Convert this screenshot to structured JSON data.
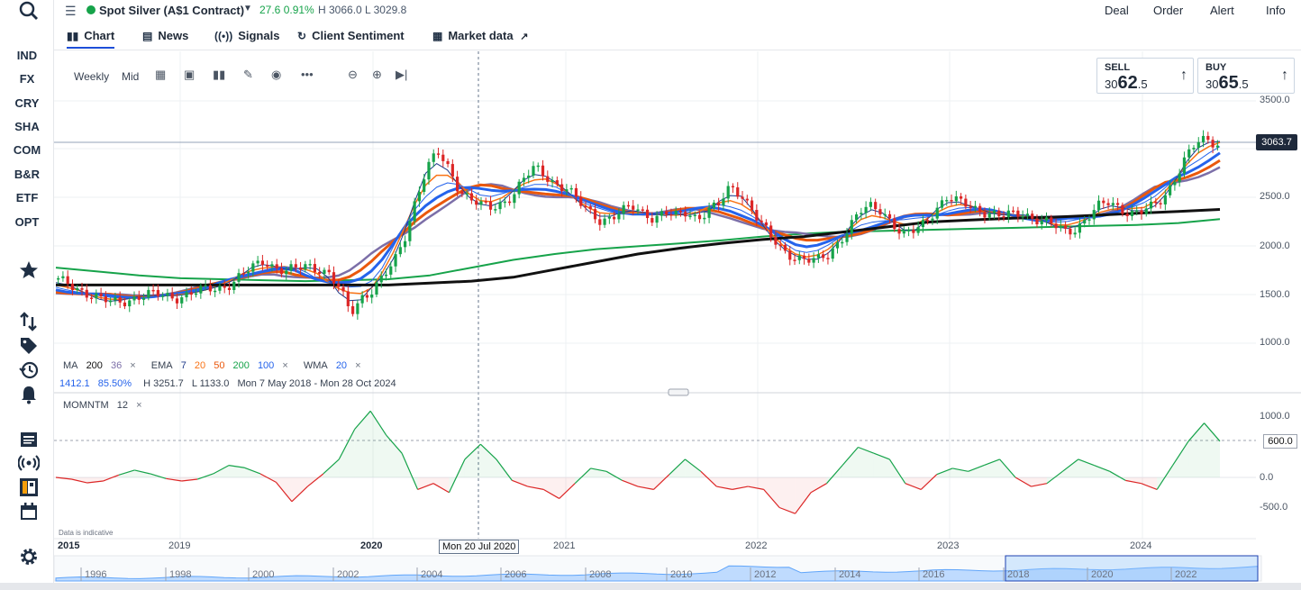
{
  "header": {
    "title": "Spot Silver (A$1 Contract)",
    "change": "27.6  0.91%",
    "high_low": "H 3066.0  L 3029.8",
    "nav": [
      "Deal",
      "Order",
      "Alert",
      "Info"
    ]
  },
  "tabs": [
    {
      "label": "Chart",
      "icon": "chart-icon"
    },
    {
      "label": "News",
      "icon": "news-icon"
    },
    {
      "label": "Signals",
      "icon": "signals-icon"
    },
    {
      "label": "Client Sentiment",
      "icon": "sentiment-icon"
    },
    {
      "label": "Market data",
      "icon": "market-data-icon"
    }
  ],
  "sidebar": {
    "items": [
      "IND",
      "FX",
      "CRY",
      "SHA",
      "COM",
      "B&R",
      "ETF",
      "OPT"
    ]
  },
  "toolbar": {
    "interval": "Weekly",
    "price_type": "Mid"
  },
  "quote": {
    "sell_label": "SELL",
    "sell_small": "30",
    "sell_big": "62",
    "sell_frac": ".5",
    "buy_label": "BUY",
    "buy_small": "30",
    "buy_big": "65",
    "buy_frac": ".5",
    "last": "3063.7"
  },
  "main_axis": {
    "y_ticks": [
      "3500.0",
      "2500.0",
      "2000.0",
      "1500.0",
      "1000.0"
    ]
  },
  "indicators": {
    "ma": {
      "name": "MA",
      "p1": "200",
      "p2": "36",
      "x": "×"
    },
    "ema": {
      "name": "EMA",
      "periods": [
        "7",
        "20",
        "50",
        "200",
        "100"
      ],
      "x": "×"
    },
    "wma": {
      "name": "WMA",
      "period": "20",
      "x": "×"
    },
    "stats": {
      "v1": "1412.1",
      "v2": "85.50%",
      "high": "H 3251.7",
      "low": "L 1133.0",
      "range": "Mon 7 May 2018 - Mon 28 Oct 2024"
    }
  },
  "momentum": {
    "label": "MOMNTM",
    "period": "12",
    "x": "×",
    "y_ticks": [
      "1000.0",
      "0.0",
      "-500.0"
    ],
    "tag_value": "600.0"
  },
  "x_axis": {
    "labels": [
      "2015",
      "2019",
      "2020",
      "2021",
      "2022",
      "2023",
      "2024"
    ],
    "crosshair_label": "Mon 20 Jul 2020",
    "disclaimer": "Data is indicative"
  },
  "navigator": {
    "years": [
      "1996",
      "1998",
      "2000",
      "2002",
      "2004",
      "2006",
      "2008",
      "2010",
      "2012",
      "2014",
      "2016",
      "2018",
      "2020",
      "2022"
    ]
  },
  "chart_data": {
    "type": "line",
    "title": "",
    "price_series_weekly_close": [
      1640,
      1610,
      1560,
      1500,
      1440,
      1420,
      1440,
      1470,
      1490,
      1500,
      1490,
      1480,
      1500,
      1530,
      1560,
      1580,
      1620,
      1700,
      1780,
      1860,
      1790,
      1740,
      1760,
      1800,
      1780,
      1720,
      1540,
      1300,
      1480,
      1560,
      1680,
      1820,
      2100,
      2500,
      2800,
      2960,
      2800,
      2600,
      2500,
      2420,
      2380,
      2450,
      2550,
      2700,
      2800,
      2720,
      2650,
      2600,
      2450,
      2350,
      2280,
      2300,
      2350,
      2400,
      2350,
      2300,
      2350,
      2300,
      2350,
      2300,
      2380,
      2420,
      2600,
      2550,
      2400,
      2200,
      2050,
      1950,
      1900,
      1860,
      1840,
      1900,
      2050,
      2200,
      2350,
      2400,
      2380,
      2250,
      2100,
      2150,
      2250,
      2400,
      2500,
      2450,
      2420,
      2380,
      2350,
      2300,
      2320,
      2350,
      2300,
      2250,
      2200,
      2150,
      2200,
      2300,
      2400,
      2450,
      2400,
      2350,
      2350,
      2400,
      2500,
      2700,
      2900,
      3050,
      3100,
      3063.7
    ],
    "ma200_line": [
      1600,
      1600,
      1600,
      1600,
      1600,
      1600,
      1600,
      1600,
      1600,
      1620,
      1640,
      1680,
      1760,
      1840,
      1920,
      1980,
      2030,
      2070,
      2100,
      2150,
      2200,
      2250,
      2270,
      2290,
      2300,
      2320,
      2340,
      2360,
      2380
    ],
    "ema200_line": [
      1780,
      1740,
      1700,
      1670,
      1660,
      1650,
      1640,
      1650,
      1660,
      1700,
      1780,
      1860,
      1920,
      1970,
      2000,
      2030,
      2060,
      2100,
      2130,
      2150,
      2160,
      2170,
      2180,
      2190,
      2200,
      2210,
      2220,
      2240,
      2280
    ],
    "momentum_series": [
      0,
      -30,
      -90,
      -60,
      40,
      120,
      60,
      -20,
      -60,
      -30,
      60,
      200,
      160,
      60,
      -80,
      -400,
      -150,
      60,
      300,
      800,
      1100,
      700,
      400,
      -200,
      -100,
      -250,
      300,
      550,
      300,
      -50,
      -150,
      -200,
      -350,
      -100,
      150,
      100,
      -50,
      -150,
      -200,
      50,
      300,
      100,
      -150,
      -200,
      -150,
      -200,
      -500,
      -600,
      -250,
      -100,
      200,
      500,
      400,
      300,
      -100,
      -200,
      50,
      150,
      100,
      200,
      300,
      0,
      -150,
      -100,
      100,
      300,
      200,
      100,
      -50,
      -100,
      -200,
      200,
      600,
      900,
      600
    ],
    "ylim_price": [
      1000,
      3500
    ],
    "ylim_momentum": [
      -600,
      1100
    ],
    "x_labels": [
      "2015",
      "2019",
      "2020",
      "2021",
      "2022",
      "2023",
      "2024"
    ]
  },
  "colors": {
    "up": "#16a34a",
    "down": "#dc2626",
    "ema7": "#1e3a8a",
    "ema20": "#f97316",
    "ema50": "#ea580c",
    "ema200": "#16a34a",
    "ema100": "#2563eb",
    "wma": "#2563eb",
    "ma200": "#111111",
    "ma36": "#7c6fa8"
  }
}
